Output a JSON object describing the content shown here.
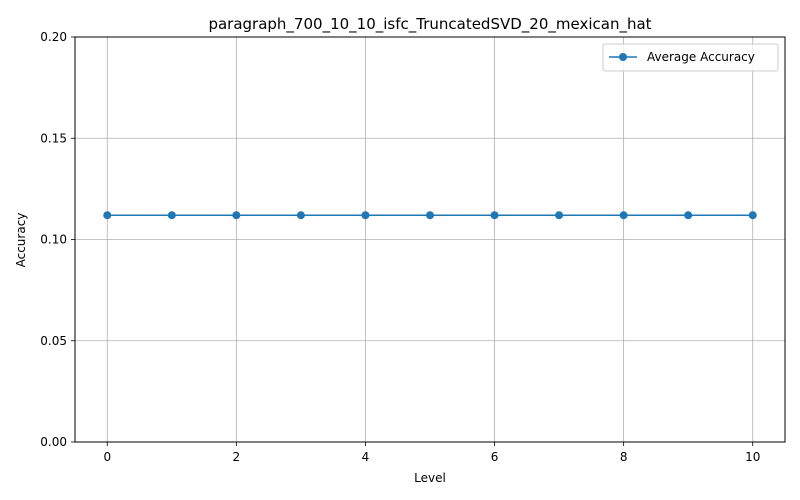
{
  "chart_data": {
    "type": "line",
    "title": "paragraph_700_10_10_isfc_TruncatedSVD_20_mexican_hat",
    "xlabel": "Level",
    "ylabel": "Accuracy",
    "xlim": [
      -0.5,
      10.5
    ],
    "ylim": [
      0.0,
      0.2
    ],
    "xticks": [
      "0",
      "2",
      "4",
      "6",
      "8",
      "10"
    ],
    "yticks": [
      "0.00",
      "0.05",
      "0.10",
      "0.15",
      "0.20"
    ],
    "grid": true,
    "legend_position": "top-right",
    "series": [
      {
        "name": "Average Accuracy",
        "color": "#1f77b4",
        "marker": "circle",
        "x": [
          0,
          1,
          2,
          3,
          4,
          5,
          6,
          7,
          8,
          9,
          10
        ],
        "y": [
          0.112,
          0.112,
          0.112,
          0.112,
          0.112,
          0.112,
          0.112,
          0.112,
          0.112,
          0.112,
          0.112
        ]
      }
    ]
  }
}
